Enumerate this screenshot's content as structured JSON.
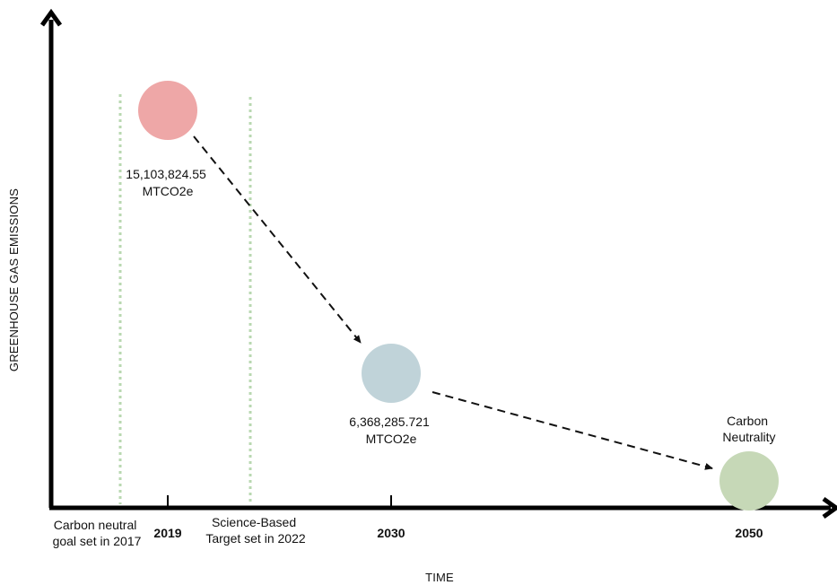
{
  "chart_data": {
    "type": "scatter",
    "xlabel": "TIME",
    "ylabel": "GREENHOUSE GAS EMISSIONS",
    "ticks": [
      "2019",
      "2030",
      "2050"
    ],
    "points": [
      {
        "year": "2019",
        "value": 15103824.55,
        "label_lines": [
          "15,103,824.55",
          "MTCO2e"
        ],
        "color": "#eea7a7"
      },
      {
        "year": "2030",
        "value": 6368285.721,
        "label_lines": [
          "6,368,285.721",
          "MTCO2e"
        ],
        "color": "#c0d3d9"
      },
      {
        "year": "2050",
        "value": 0,
        "label_lines": [
          "Carbon",
          "Neutrality"
        ],
        "color": "#c6d8b7"
      }
    ],
    "milestones": [
      {
        "lines": [
          "Carbon neutral",
          "goal set in 2017"
        ]
      },
      {
        "lines": [
          "Science-Based",
          "Target set in 2022"
        ]
      }
    ],
    "colors": {
      "axis": "#000000",
      "milestone_line": "#b9d8b1",
      "arrow": "#111111"
    }
  }
}
